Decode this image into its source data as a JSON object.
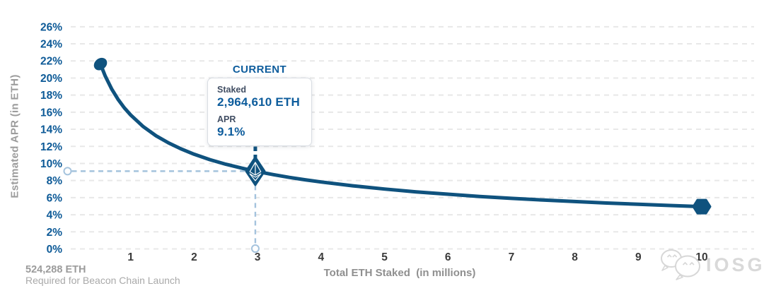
{
  "y_axis": {
    "title": "Estimated APR (in ETH)"
  },
  "x_axis": {
    "title": "Total ETH Staked  (in millions)"
  },
  "annotation": {
    "label": "CURRENT",
    "staked_label": "Staked",
    "staked_value": "2,964,610 ETH",
    "apr_label": "APR",
    "apr_value": "9.1%"
  },
  "footnote": {
    "value": "524,288 ETH",
    "description": "Required for Beacon Chain Launch"
  },
  "watermark": {
    "text": "IOSG"
  },
  "colors": {
    "curve_blue": "#0f527e",
    "tick_blue": "#0d5a97",
    "value_blue": "#0d5c9c",
    "guide_light_blue": "#a5c3dd",
    "gridline_gray": "#e8e8e8",
    "x_tick_dark": "#3a3a3a",
    "axis_title_gray": "#8f8f8f",
    "footnote_gray": "#9b9b9b",
    "watermark_gray": "#d6d6d6"
  },
  "chart_data": {
    "type": "line",
    "title": "",
    "xlabel": "Total ETH Staked (in millions)",
    "ylabel": "Estimated APR (in ETH)",
    "xlim": [
      0,
      10.8
    ],
    "ylim": [
      0,
      26
    ],
    "grid": "horizontal-dashed",
    "legend_position": "none",
    "x_tick_values": [
      1,
      2,
      3,
      4,
      5,
      6,
      7,
      8,
      9,
      10
    ],
    "x_tick_labels": [
      "1",
      "2",
      "3",
      "4",
      "5",
      "6",
      "7",
      "8",
      "9",
      "10"
    ],
    "y_tick_values": [
      0,
      2,
      4,
      6,
      8,
      10,
      12,
      14,
      16,
      18,
      20,
      22,
      24,
      26
    ],
    "y_tick_labels": [
      "0%",
      "2%",
      "4%",
      "6%",
      "8%",
      "10%",
      "12%",
      "14%",
      "16%",
      "18%",
      "20%",
      "22%",
      "24%",
      "26%"
    ],
    "series": [
      {
        "name": "Estimated APR (in ETH)",
        "points": [
          [
            0.524288,
            21.63
          ],
          [
            0.6,
            20.22
          ],
          [
            0.7,
            18.72
          ],
          [
            0.8,
            17.51
          ],
          [
            0.9,
            16.51
          ],
          [
            1,
            15.67
          ],
          [
            1.2,
            14.3
          ],
          [
            1.4,
            13.24
          ],
          [
            1.6,
            12.39
          ],
          [
            1.8,
            11.68
          ],
          [
            2,
            11.08
          ],
          [
            2.25,
            10.44
          ],
          [
            2.5,
            9.91
          ],
          [
            2.75,
            9.45
          ],
          [
            2.96461,
            9.1
          ],
          [
            3.25,
            8.69
          ],
          [
            3.5,
            8.37
          ],
          [
            3.75,
            8.09
          ],
          [
            4,
            7.83
          ],
          [
            4.5,
            7.39
          ],
          [
            5,
            7.01
          ],
          [
            5.5,
            6.68
          ],
          [
            6,
            6.4
          ],
          [
            6.5,
            6.14
          ],
          [
            7,
            5.92
          ],
          [
            7.5,
            5.72
          ],
          [
            8,
            5.54
          ],
          [
            8.5,
            5.37
          ],
          [
            9,
            5.22
          ],
          [
            9.5,
            5.08
          ],
          [
            10,
            4.95
          ]
        ]
      }
    ],
    "markers": {
      "start": {
        "x": 0.524288,
        "y": 21.63
      },
      "end": {
        "x": 10,
        "y": 4.95
      },
      "current": {
        "x": 2.96461,
        "y": 9.1,
        "staked_eth": "2,964,610 ETH",
        "apr": "9.1%"
      }
    }
  }
}
